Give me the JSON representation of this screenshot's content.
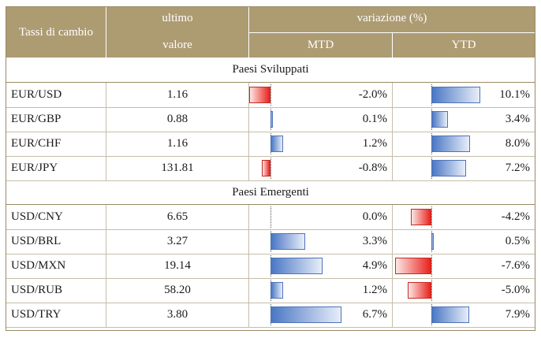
{
  "header": {
    "col_pair": "Tassi di cambio",
    "col_last_line1": "ultimo",
    "col_last_line2": "valore",
    "col_change": "variazione (%)",
    "col_mtd": "MTD",
    "col_ytd": "YTD"
  },
  "colors": {
    "header_bg": "#ad9b72",
    "positive_bar": "#4a77c4",
    "negative_bar": "#e8221c"
  },
  "sections": [
    {
      "title": "Paesi Sviluppati",
      "rows": [
        {
          "pair": "EUR/USD",
          "value": "1.16",
          "mtd": "-2.0%",
          "ytd": "10.1%"
        },
        {
          "pair": "EUR/GBP",
          "value": "0.88",
          "mtd": "0.1%",
          "ytd": "3.4%"
        },
        {
          "pair": "EUR/CHF",
          "value": "1.16",
          "mtd": "1.2%",
          "ytd": "8.0%"
        },
        {
          "pair": "EUR/JPY",
          "value": "131.81",
          "mtd": "-0.8%",
          "ytd": "7.2%"
        }
      ]
    },
    {
      "title": "Paesi Emergenti",
      "rows": [
        {
          "pair": "USD/CNY",
          "value": "6.65",
          "mtd": "0.0%",
          "ytd": "-4.2%"
        },
        {
          "pair": "USD/BRL",
          "value": "3.27",
          "mtd": "3.3%",
          "ytd": "0.5%"
        },
        {
          "pair": "USD/MXN",
          "value": "19.14",
          "mtd": "4.9%",
          "ytd": "-7.6%"
        },
        {
          "pair": "USD/RUB",
          "value": "58.20",
          "mtd": "1.2%",
          "ytd": "-5.0%"
        },
        {
          "pair": "USD/TRY",
          "value": "3.80",
          "mtd": "6.7%",
          "ytd": "7.9%"
        }
      ]
    }
  ]
}
